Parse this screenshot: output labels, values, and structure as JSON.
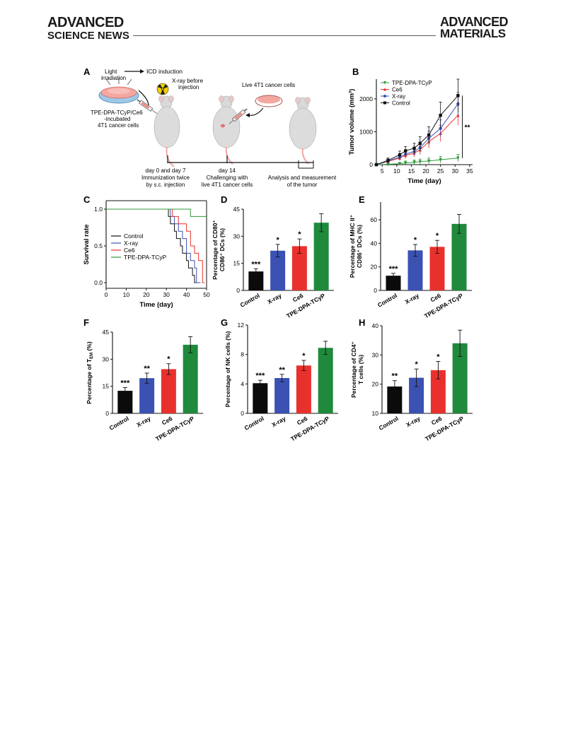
{
  "header": {
    "journal_left_line1": "ADVANCED",
    "journal_left_line2": "SCIENCE NEWS",
    "journal_right_line1": "ADVANCED",
    "journal_right_line2": "MATERIALS"
  },
  "panel_a": {
    "letter": "A",
    "light_line1": "Light",
    "light_line2": "irradiation",
    "icd": "ICD induction",
    "xray_line1": "X-ray before",
    "xray_line2": "injection",
    "cells_line1": "TPE-DPA-TCyP/Ce6",
    "cells_line2": "-incubated",
    "cells_line3": "4T1 cancer cells",
    "live_cells": "Live 4T1 cancer cells",
    "step1_line1": "day 0 and day 7",
    "step1_line2": "Immunization twice",
    "step1_line3": "by s.c. injection",
    "step2_line1": "day 14",
    "step2_line2": "Challenging with",
    "step2_line3": "live 4T1 cancer cells",
    "step3_line1": "Analysis and measurement",
    "step3_line2": "of the tumor",
    "colors": {
      "dish": "#f4a7a0",
      "mouse": "#d9d9d9",
      "tail": "#f2a6a6",
      "radiation": "#f5d000"
    }
  },
  "chart_data": [
    {
      "panel": "B",
      "type": "line",
      "xlabel": "Time (day)",
      "ylabel": "Tumor volume (mm³)",
      "xlim": [
        3,
        36
      ],
      "ylim": [
        0,
        2600
      ],
      "xticks": [
        "5",
        "10",
        "15",
        "20",
        "25",
        "30",
        "35"
      ],
      "yticks": [
        "0",
        "1000",
        "2000"
      ],
      "x": [
        3,
        7,
        11,
        13,
        16,
        18,
        21,
        25,
        31
      ],
      "series": [
        {
          "name": "TPE-DPA-TCyP",
          "color": "#2e9a3a",
          "marker": "triangle-down",
          "values": [
            0,
            10,
            30,
            50,
            70,
            90,
            110,
            150,
            200
          ],
          "errors": [
            10,
            20,
            40,
            60,
            70,
            80,
            90,
            100,
            110
          ]
        },
        {
          "name": "Ce6",
          "color": "#e8312d",
          "marker": "triangle-up",
          "values": [
            0,
            100,
            200,
            280,
            350,
            450,
            700,
            950,
            1500
          ],
          "errors": [
            20,
            50,
            80,
            100,
            120,
            150,
            200,
            250,
            300
          ]
        },
        {
          "name": "X-ray",
          "color": "#3b52b3",
          "marker": "circle",
          "values": [
            0,
            110,
            230,
            320,
            400,
            520,
            800,
            1100,
            1850
          ],
          "errors": [
            20,
            60,
            90,
            110,
            130,
            160,
            220,
            260,
            350
          ]
        },
        {
          "name": "Control",
          "color": "#111111",
          "marker": "square",
          "values": [
            0,
            130,
            300,
            420,
            500,
            650,
            900,
            1500,
            2100
          ],
          "errors": [
            20,
            70,
            110,
            130,
            150,
            200,
            250,
            400,
            500
          ]
        }
      ],
      "annotation": "**"
    },
    {
      "panel": "C",
      "type": "line",
      "xlabel": "Time (day)",
      "ylabel": "Survival rate",
      "xlim": [
        0,
        50
      ],
      "ylim": [
        0,
        1.1
      ],
      "xticks": [
        "0",
        "10",
        "20",
        "30",
        "40",
        "50"
      ],
      "yticks": [
        "0.0",
        "0.5",
        "1.0"
      ],
      "series": [
        {
          "name": "Control",
          "color": "#111111",
          "x": [
            0,
            30,
            31,
            32,
            34,
            35,
            37,
            38,
            40,
            41,
            43,
            44,
            46
          ],
          "values": [
            1,
            1,
            0.9,
            0.8,
            0.7,
            0.6,
            0.5,
            0.4,
            0.3,
            0.2,
            0.1,
            0.0,
            0.0
          ]
        },
        {
          "name": "X-ray",
          "color": "#3b52b3",
          "x": [
            0,
            31,
            32,
            34,
            36,
            38,
            40,
            42,
            44,
            45,
            47
          ],
          "values": [
            1,
            1,
            0.9,
            0.8,
            0.7,
            0.6,
            0.4,
            0.3,
            0.2,
            0.0,
            0.0
          ]
        },
        {
          "name": "Ce6",
          "color": "#e8312d",
          "x": [
            0,
            31,
            33,
            36,
            40,
            42,
            44,
            46,
            48,
            49
          ],
          "values": [
            1,
            1,
            0.9,
            0.8,
            0.7,
            0.5,
            0.4,
            0.3,
            0.0,
            0.0
          ]
        },
        {
          "name": "TPE-DPA-TCyP",
          "color": "#2e9a3a",
          "x": [
            0,
            42,
            42,
            50
          ],
          "values": [
            1,
            1,
            0.9,
            0.9
          ]
        }
      ]
    },
    {
      "panel": "D",
      "type": "bar",
      "ylabel_line1": "Percentage of CD80⁺",
      "ylabel_line2": "CD86⁺ DCs (%)",
      "categories": [
        "Control",
        "X-ray",
        "Ce6",
        "TPE-DPA-TCyP"
      ],
      "values": [
        10.5,
        22,
        24.5,
        37.5
      ],
      "errors": [
        1.5,
        3.5,
        4,
        5
      ],
      "ylim": [
        0,
        45
      ],
      "yticks": [
        "0",
        "15",
        "30",
        "45"
      ],
      "significance": [
        "***",
        "*",
        "*",
        ""
      ],
      "colors": [
        "#0b0b0b",
        "#3b52b3",
        "#e8312d",
        "#1f8a3c"
      ]
    },
    {
      "panel": "E",
      "type": "bar",
      "ylabel_line1": "Percentage of MHC II⁺",
      "ylabel_line2": "CD86⁺ DCs (%)",
      "categories": [
        "Control",
        "X-ray",
        "Ce6",
        "TPE-DPA-TCyP"
      ],
      "values": [
        12.5,
        34,
        37,
        56.5
      ],
      "errors": [
        2,
        5,
        5.5,
        8
      ],
      "ylim": [
        0,
        75
      ],
      "yticks": [
        "0",
        "20",
        "40",
        "60"
      ],
      "significance": [
        "***",
        "*",
        "*",
        ""
      ],
      "colors": [
        "#0b0b0b",
        "#3b52b3",
        "#e8312d",
        "#1f8a3c"
      ]
    },
    {
      "panel": "F",
      "type": "bar",
      "ylabel_line1": "Percentage of T",
      "ylabel_sub": "EM",
      "ylabel_line1_suffix": " (%)",
      "categories": [
        "Control",
        "X-ray",
        "Ce6",
        "TPE-DPA-TCyP"
      ],
      "values": [
        12.5,
        19.5,
        24.5,
        38
      ],
      "errors": [
        1.8,
        2.8,
        3,
        4.5
      ],
      "ylim": [
        0,
        45
      ],
      "yticks": [
        "0",
        "15",
        "30",
        "45"
      ],
      "significance": [
        "***",
        "**",
        "*",
        ""
      ],
      "colors": [
        "#0b0b0b",
        "#3b52b3",
        "#e8312d",
        "#1f8a3c"
      ]
    },
    {
      "panel": "G",
      "type": "bar",
      "ylabel_line1": "Percentage of NK cells (%)",
      "categories": [
        "Control",
        "X-ray",
        "Ce6",
        "TPE-DPA-TCyP"
      ],
      "values": [
        4.1,
        4.8,
        6.5,
        8.9
      ],
      "errors": [
        0.4,
        0.5,
        0.7,
        0.9
      ],
      "ylim": [
        0,
        12
      ],
      "yticks": [
        "0",
        "4",
        "8",
        "12"
      ],
      "significance": [
        "***",
        "**",
        "*",
        ""
      ],
      "colors": [
        "#0b0b0b",
        "#3b52b3",
        "#e8312d",
        "#1f8a3c"
      ]
    },
    {
      "panel": "H",
      "type": "bar",
      "ylabel_line1": "Percentage of CD4⁺",
      "ylabel_line2": "T cells (%)",
      "categories": [
        "Control",
        "X-ray",
        "Ce6",
        "TPE-DPA-TCyP"
      ],
      "values": [
        19.2,
        22.2,
        24.8,
        34
      ],
      "errors": [
        2,
        3,
        3,
        4.5
      ],
      "ylim": [
        10,
        40
      ],
      "yticks": [
        "10",
        "20",
        "30",
        "40"
      ],
      "significance": [
        "**",
        "*",
        "*",
        ""
      ],
      "colors": [
        "#0b0b0b",
        "#3b52b3",
        "#e8312d",
        "#1f8a3c"
      ]
    }
  ]
}
